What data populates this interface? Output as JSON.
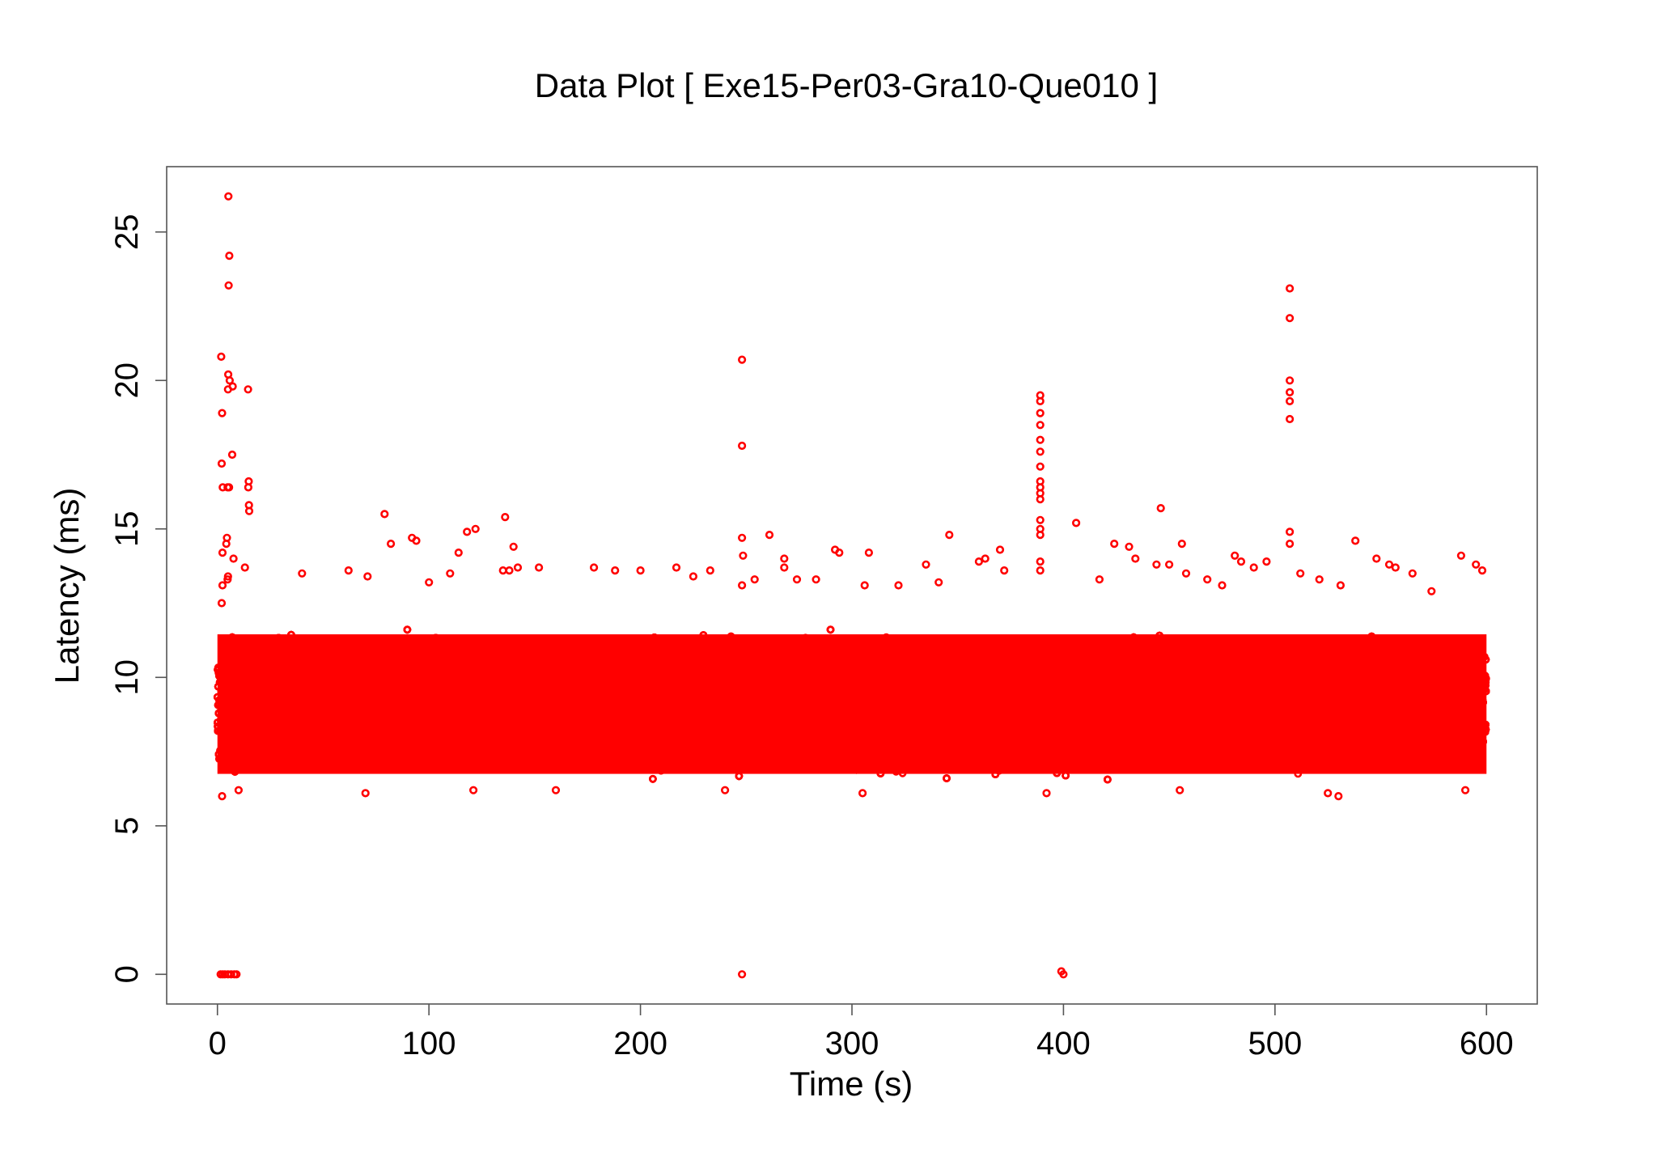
{
  "chart_data": {
    "type": "scatter",
    "title": "Data Plot [ Exe15-Per03-Gra10-Que010 ]",
    "xlabel": "Time (s)",
    "ylabel": "Latency (ms)",
    "xlim": [
      -24,
      624
    ],
    "ylim": [
      -1,
      27.2
    ],
    "xticks": [
      0,
      100,
      200,
      300,
      400,
      500,
      600
    ],
    "yticks": [
      0,
      5,
      10,
      15,
      20,
      25
    ],
    "grid": false,
    "legend": "none",
    "color": "#ff0000",
    "series": [
      {
        "dense_band": {
          "x_range": [
            0,
            600
          ],
          "y_range": [
            6.4,
            11.7
          ],
          "description_only": false
        },
        "points": [
          [
            5.2,
            26.2
          ],
          [
            5.6,
            24.2
          ],
          [
            5.3,
            23.2
          ],
          [
            1.8,
            20.8
          ],
          [
            5.1,
            20.2
          ],
          [
            5.8,
            20.0
          ],
          [
            7.2,
            19.8
          ],
          [
            5.0,
            19.7
          ],
          [
            14.5,
            19.7
          ],
          [
            2.2,
            18.9
          ],
          [
            7.0,
            17.5
          ],
          [
            2.0,
            17.2
          ],
          [
            2.5,
            16.4
          ],
          [
            4.8,
            16.4
          ],
          [
            5.5,
            16.4
          ],
          [
            14.8,
            16.6
          ],
          [
            14.6,
            16.4
          ],
          [
            14.9,
            15.8
          ],
          [
            15.0,
            15.6
          ],
          [
            4.5,
            14.7
          ],
          [
            4.2,
            14.5
          ],
          [
            2.4,
            14.2
          ],
          [
            7.6,
            14.0
          ],
          [
            13.0,
            13.7
          ],
          [
            5.0,
            13.4
          ],
          [
            4.8,
            13.3
          ],
          [
            2.4,
            13.1
          ],
          [
            2.0,
            12.5
          ],
          [
            1.5,
            0
          ],
          [
            2.5,
            0
          ],
          [
            3.5,
            0
          ],
          [
            5.0,
            0
          ],
          [
            6.5,
            0
          ],
          [
            8.0,
            0
          ],
          [
            9.0,
            0
          ],
          [
            248,
            20.7
          ],
          [
            248,
            17.8
          ],
          [
            248,
            14.7
          ],
          [
            248.5,
            14.1
          ],
          [
            248,
            13.1
          ],
          [
            248,
            0
          ],
          [
            389,
            19.5
          ],
          [
            389,
            19.3
          ],
          [
            389,
            18.9
          ],
          [
            389,
            18.5
          ],
          [
            389,
            18.0
          ],
          [
            389,
            17.6
          ],
          [
            389,
            17.1
          ],
          [
            389,
            16.6
          ],
          [
            389,
            16.4
          ],
          [
            389,
            16.2
          ],
          [
            389,
            16.0
          ],
          [
            389,
            15.3
          ],
          [
            389,
            15.0
          ],
          [
            389,
            14.8
          ],
          [
            389,
            13.9
          ],
          [
            389,
            13.6
          ],
          [
            400,
            0
          ],
          [
            406,
            15.2
          ],
          [
            507,
            23.1
          ],
          [
            507,
            22.1
          ],
          [
            507,
            20.0
          ],
          [
            507,
            19.6
          ],
          [
            507,
            19.3
          ],
          [
            507,
            18.7
          ],
          [
            507,
            14.9
          ],
          [
            507,
            14.5
          ],
          [
            79,
            15.5
          ],
          [
            92,
            14.7
          ],
          [
            94,
            14.6
          ],
          [
            82,
            14.5
          ],
          [
            114,
            14.2
          ],
          [
            118,
            14.9
          ],
          [
            122,
            15.0
          ],
          [
            136,
            15.4
          ],
          [
            140,
            14.4
          ],
          [
            142,
            13.7
          ],
          [
            135,
            13.6
          ],
          [
            138,
            13.6
          ],
          [
            152,
            13.7
          ],
          [
            178,
            13.7
          ],
          [
            188,
            13.6
          ],
          [
            200,
            13.6
          ],
          [
            217,
            13.7
          ],
          [
            233,
            13.6
          ],
          [
            254,
            13.3
          ],
          [
            261,
            14.8
          ],
          [
            268,
            14.0
          ],
          [
            268,
            13.7
          ],
          [
            274,
            13.3
          ],
          [
            292,
            14.3
          ],
          [
            294,
            14.2
          ],
          [
            308,
            14.2
          ],
          [
            306,
            13.1
          ],
          [
            335,
            13.8
          ],
          [
            346,
            14.8
          ],
          [
            360,
            13.9
          ],
          [
            363,
            14.0
          ],
          [
            370,
            14.3
          ],
          [
            372,
            13.6
          ],
          [
            424,
            14.5
          ],
          [
            431,
            14.4
          ],
          [
            434,
            14.0
          ],
          [
            446,
            15.7
          ],
          [
            444,
            13.8
          ],
          [
            450,
            13.8
          ],
          [
            456,
            14.5
          ],
          [
            458,
            13.5
          ],
          [
            468,
            13.3
          ],
          [
            481,
            14.1
          ],
          [
            484,
            13.9
          ],
          [
            490,
            13.7
          ],
          [
            496,
            13.9
          ],
          [
            512,
            13.5
          ],
          [
            521,
            13.3
          ],
          [
            538,
            14.6
          ],
          [
            548,
            14.0
          ],
          [
            554,
            13.8
          ],
          [
            557,
            13.7
          ],
          [
            565,
            13.5
          ],
          [
            588,
            14.1
          ],
          [
            595,
            13.8
          ],
          [
            598,
            13.6
          ],
          [
            40,
            13.5
          ],
          [
            62,
            13.6
          ],
          [
            71,
            13.4
          ],
          [
            100,
            13.2
          ],
          [
            110,
            13.5
          ],
          [
            225,
            13.4
          ],
          [
            283,
            13.3
          ],
          [
            322,
            13.1
          ],
          [
            341,
            13.2
          ],
          [
            417,
            13.3
          ],
          [
            475,
            13.1
          ],
          [
            531,
            13.1
          ],
          [
            574,
            12.9
          ],
          [
            399,
            0.1
          ],
          [
            2.2,
            6.0
          ],
          [
            70,
            6.1
          ],
          [
            121,
            6.2
          ],
          [
            240,
            6.2
          ],
          [
            392,
            6.1
          ],
          [
            525,
            6.1
          ],
          [
            530,
            6.0
          ],
          [
            590,
            6.2
          ],
          [
            10,
            6.2
          ],
          [
            160,
            6.2
          ],
          [
            305,
            6.1
          ],
          [
            455,
            6.2
          ]
        ]
      }
    ]
  }
}
